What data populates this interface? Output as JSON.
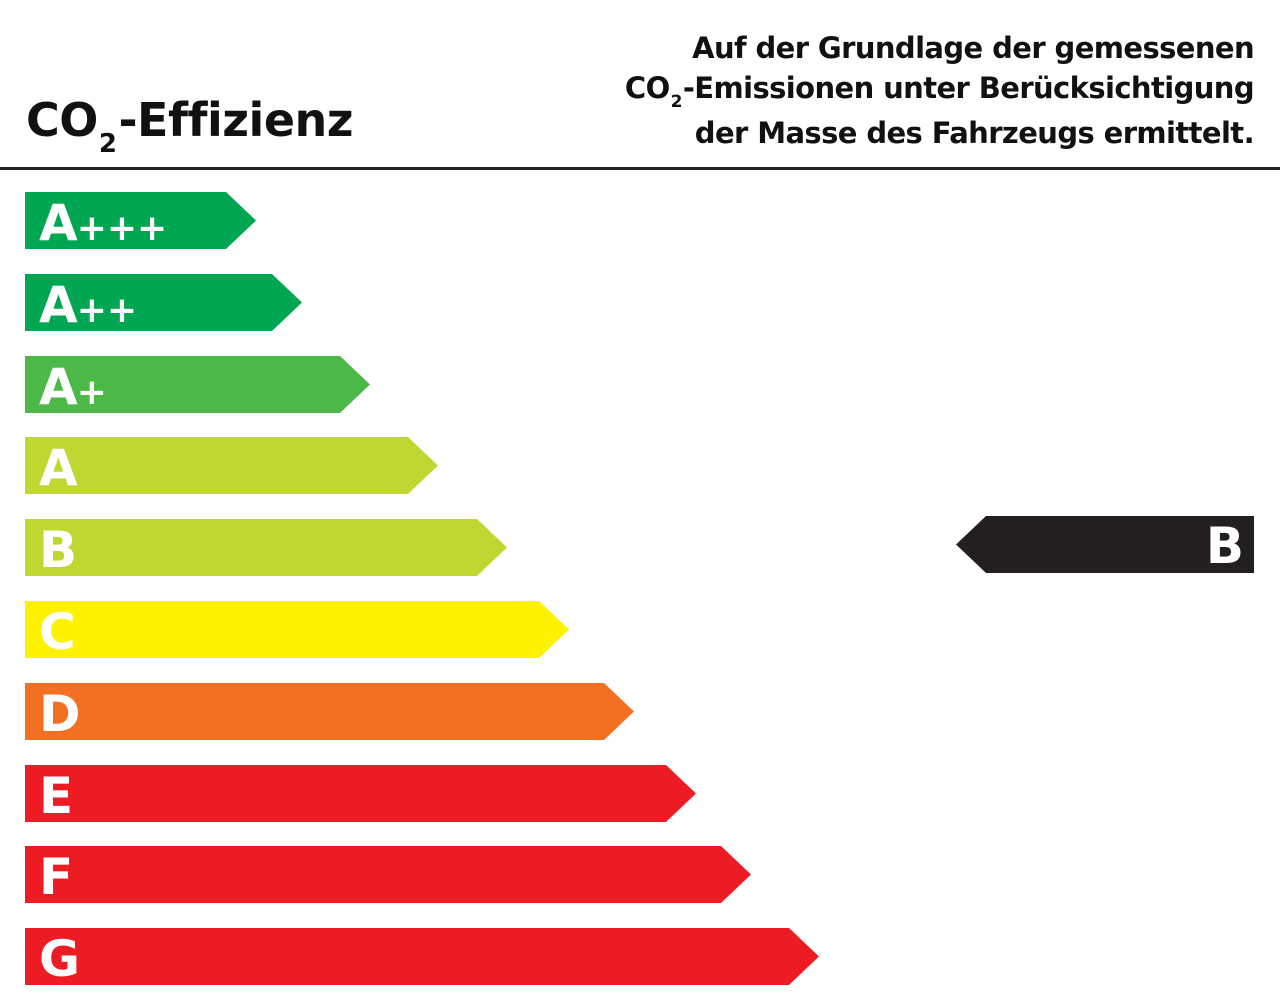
{
  "header": {
    "title_prefix": "CO",
    "title_sub": "2",
    "title_suffix": "-Effizienz",
    "desc_line1": "Auf der Grundlage der gemessenen",
    "desc_line2_prefix": "CO",
    "desc_line2_sub": "2",
    "desc_line2_suffix": "-Emissionen unter Berücksichtigung",
    "desc_line3": "der Masse des Fahrzeugs ermittelt."
  },
  "classes": [
    {
      "letter": "A",
      "plus": "+++",
      "color": "#00a651",
      "level": 1
    },
    {
      "letter": "A",
      "plus": "++",
      "color": "#00a651",
      "level": 2
    },
    {
      "letter": "A",
      "plus": "+",
      "color": "#4cb848",
      "level": 3
    },
    {
      "letter": "A",
      "plus": "",
      "color": "#bfd730",
      "level": 4
    },
    {
      "letter": "B",
      "plus": "",
      "color": "#bfd730",
      "level": 5
    },
    {
      "letter": "C",
      "plus": "",
      "color": "#fff200",
      "level": 6
    },
    {
      "letter": "D",
      "plus": "",
      "color": "#f36f21",
      "level": 7
    },
    {
      "letter": "E",
      "plus": "",
      "color": "#ed1c24",
      "level": 8
    },
    {
      "letter": "F",
      "plus": "",
      "color": "#ed1c24",
      "level": 9
    },
    {
      "letter": "G",
      "plus": "",
      "color": "#ed1c24",
      "level": 10
    }
  ],
  "rating": {
    "label": "B",
    "color": "#231f20"
  }
}
